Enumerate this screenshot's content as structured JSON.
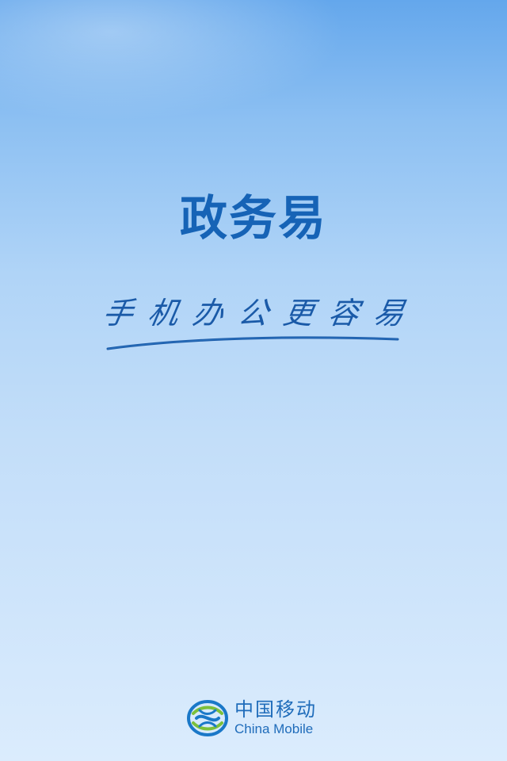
{
  "app": {
    "title": "政务易",
    "slogan_chars": [
      "手",
      "机",
      "办",
      "公",
      "更",
      "容",
      "易"
    ]
  },
  "brand": {
    "name_cn": "中国移动",
    "name_en": "China Mobile",
    "logo_icon": "china-mobile-logo-icon"
  },
  "colors": {
    "title": "#1663b6",
    "slogan": "#1a5aa8",
    "brand": "#1f6cba",
    "logo_green": "#7cc03b",
    "logo_blue": "#1a78c8"
  }
}
